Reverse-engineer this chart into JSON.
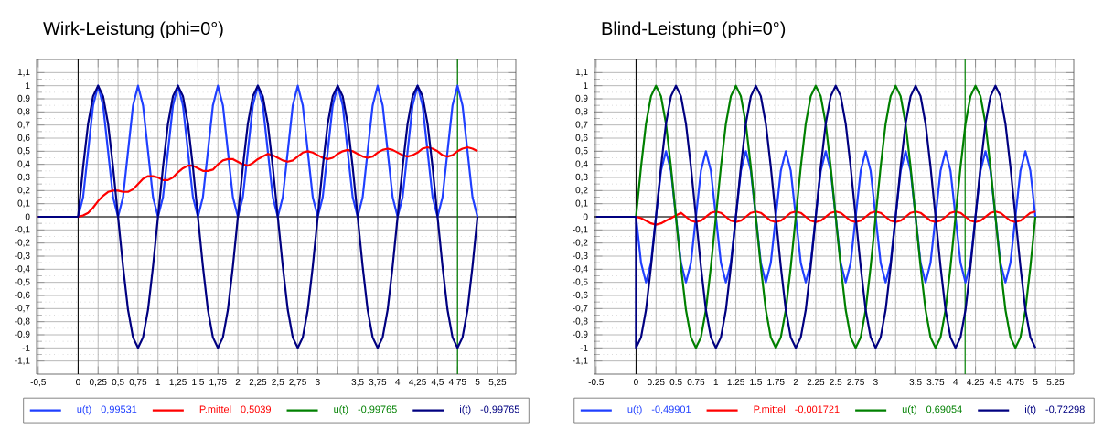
{
  "chart_data": [
    {
      "type": "line",
      "title": "Wirk-Leistung (phi=0°)",
      "grid": true,
      "legend": "bottom",
      "xlim": [
        -0.52,
        5.48
      ],
      "ylim": [
        -1.2,
        1.2
      ],
      "xticks": [
        {
          "value": -0.5,
          "label": "-0,5"
        },
        0,
        {
          "value": 0.25,
          "label": "0,25"
        },
        {
          "value": 0.5,
          "label": "0,5"
        },
        {
          "value": 0.75,
          "label": "0,75"
        },
        1,
        {
          "value": 1.25,
          "label": "1,25"
        },
        {
          "value": 1.5,
          "label": "1,5"
        },
        {
          "value": 1.75,
          "label": "1,75"
        },
        2,
        {
          "value": 2.25,
          "label": "2,25"
        },
        {
          "value": 2.5,
          "label": "2,5"
        },
        {
          "value": 2.75,
          "label": "2,75"
        },
        3,
        {
          "value": 3.25,
          "label": null
        },
        {
          "value": 3.5,
          "label": "3,5"
        },
        {
          "value": 3.75,
          "label": "3,75"
        },
        4,
        {
          "value": 4.25,
          "label": "4,25"
        },
        {
          "value": 4.5,
          "label": "4,5"
        },
        {
          "value": 4.75,
          "label": "4,75"
        },
        5,
        {
          "value": 5.25,
          "label": "5,25"
        }
      ],
      "yticks": [
        {
          "value": -1.1,
          "label": "-1,1"
        },
        -1,
        {
          "value": -0.9,
          "label": "-0,9"
        },
        {
          "value": -0.8,
          "label": "-0,8"
        },
        {
          "value": -0.7,
          "label": "-0,7"
        },
        {
          "value": -0.6,
          "label": "-0,6"
        },
        {
          "value": -0.5,
          "label": "-0,5"
        },
        {
          "value": -0.4,
          "label": "-0,4"
        },
        {
          "value": -0.3,
          "label": "-0,3"
        },
        {
          "value": -0.2,
          "label": "-0,2"
        },
        {
          "value": -0.1,
          "label": "-0,1"
        },
        0,
        {
          "value": 0.1,
          "label": "0,1"
        },
        {
          "value": 0.2,
          "label": "0,2"
        },
        {
          "value": 0.3,
          "label": "0,3"
        },
        {
          "value": 0.4,
          "label": "0,4"
        },
        {
          "value": 0.5,
          "label": "0,5"
        },
        {
          "value": 0.6,
          "label": "0,6"
        },
        {
          "value": 0.7,
          "label": "0,7"
        },
        {
          "value": 0.8,
          "label": "0,8"
        },
        {
          "value": 0.9,
          "label": "0,9"
        },
        1,
        {
          "value": 1.1,
          "label": "1,1"
        }
      ],
      "ref_lines": [
        {
          "axis": "x",
          "value": 4.75,
          "color": "#008000"
        }
      ],
      "annotations": [
        "0,99531",
        "0,5039",
        "-0,99765",
        "-0,99765"
      ],
      "x": [
        -0.5,
        0,
        0,
        0.0625,
        0.125,
        0.1875,
        0.25,
        0.3125,
        0.375,
        0.4375,
        0.5,
        0.5625,
        0.625,
        0.6875,
        0.75,
        0.8125,
        0.875,
        0.9375,
        1,
        1.0625,
        1.125,
        1.1875,
        1.25,
        1.3125,
        1.375,
        1.4375,
        1.5,
        1.5625,
        1.625,
        1.6875,
        1.75,
        1.8125,
        1.875,
        1.9375,
        2,
        2.0625,
        2.125,
        2.1875,
        2.25,
        2.3125,
        2.375,
        2.4375,
        2.5,
        2.5625,
        2.625,
        2.6875,
        2.75,
        2.8125,
        2.875,
        2.9375,
        3,
        3.0625,
        3.125,
        3.1875,
        3.25,
        3.3125,
        3.375,
        3.4375,
        3.5,
        3.5625,
        3.625,
        3.6875,
        3.75,
        3.8125,
        3.875,
        3.9375,
        4,
        4.0625,
        4.125,
        4.1875,
        4.25,
        4.3125,
        4.375,
        4.4375,
        4.5,
        4.5625,
        4.625,
        4.6875,
        4.75,
        4.8125,
        4.875,
        4.9375,
        5
      ],
      "series": [
        {
          "name": "u(t)",
          "color": "#1f3fff",
          "values": [
            0,
            0,
            0,
            0.15,
            0.5,
            0.85,
            1,
            0.85,
            0.5,
            0.15,
            0,
            0.15,
            0.5,
            0.85,
            1,
            0.85,
            0.5,
            0.15,
            0,
            0.15,
            0.5,
            0.85,
            1,
            0.85,
            0.5,
            0.15,
            0,
            0.15,
            0.5,
            0.85,
            1,
            0.85,
            0.5,
            0.15,
            0,
            0.15,
            0.5,
            0.85,
            1,
            0.85,
            0.5,
            0.15,
            0,
            0.15,
            0.5,
            0.85,
            1,
            0.85,
            0.5,
            0.15,
            0,
            0.15,
            0.5,
            0.85,
            1,
            0.85,
            0.5,
            0.15,
            0,
            0.15,
            0.5,
            0.85,
            1,
            0.85,
            0.5,
            0.15,
            0,
            0.15,
            0.5,
            0.85,
            1,
            0.85,
            0.5,
            0.15,
            0,
            0.15,
            0.5,
            0.85,
            1,
            0.85,
            0.5,
            0.15,
            0
          ]
        },
        {
          "name": "P.mittel",
          "color": "#ff0000",
          "values": [
            0,
            0,
            0,
            0.01,
            0.03,
            0.07,
            0.12,
            0.16,
            0.19,
            0.2,
            0.2,
            0.19,
            0.19,
            0.21,
            0.25,
            0.29,
            0.31,
            0.31,
            0.3,
            0.28,
            0.28,
            0.3,
            0.34,
            0.37,
            0.39,
            0.39,
            0.37,
            0.35,
            0.35,
            0.36,
            0.4,
            0.43,
            0.44,
            0.44,
            0.42,
            0.4,
            0.39,
            0.41,
            0.44,
            0.46,
            0.48,
            0.47,
            0.45,
            0.43,
            0.42,
            0.43,
            0.46,
            0.49,
            0.5,
            0.49,
            0.47,
            0.45,
            0.44,
            0.45,
            0.48,
            0.5,
            0.51,
            0.5,
            0.48,
            0.46,
            0.45,
            0.46,
            0.49,
            0.51,
            0.52,
            0.51,
            0.49,
            0.47,
            0.46,
            0.47,
            0.49,
            0.52,
            0.53,
            0.52,
            0.5,
            0.47,
            0.46,
            0.47,
            0.5,
            0.52,
            0.53,
            0.52,
            0.5
          ]
        },
        {
          "name": "u(t)",
          "color": "#008000",
          "values": [
            null,
            null,
            null,
            null,
            null,
            null,
            null,
            null,
            null,
            null,
            null,
            null,
            null,
            null,
            null,
            null,
            null,
            null,
            null,
            null,
            null,
            null,
            null,
            null,
            null,
            null,
            null,
            null,
            null,
            null,
            null,
            null,
            null,
            null,
            null,
            null,
            null,
            null,
            null,
            null,
            null,
            null,
            null,
            null,
            null,
            null,
            null,
            null,
            null,
            null,
            null,
            null,
            null,
            null,
            null,
            null,
            null,
            null,
            null,
            null,
            null,
            null,
            null,
            null,
            null,
            null,
            null,
            null,
            null,
            null,
            null,
            null,
            null,
            null,
            null,
            null,
            null,
            null,
            null,
            null,
            null,
            null,
            null
          ]
        },
        {
          "name": "i(t)",
          "color": "#000080",
          "values": [
            0,
            0,
            0,
            0.38,
            0.71,
            0.92,
            1,
            0.92,
            0.71,
            0.38,
            0,
            -0.38,
            -0.71,
            -0.92,
            -1,
            -0.92,
            -0.71,
            -0.38,
            0,
            0.38,
            0.71,
            0.92,
            1,
            0.92,
            0.71,
            0.38,
            0,
            -0.38,
            -0.71,
            -0.92,
            -1,
            -0.92,
            -0.71,
            -0.38,
            0,
            0.38,
            0.71,
            0.92,
            1,
            0.92,
            0.71,
            0.38,
            0,
            -0.38,
            -0.71,
            -0.92,
            -1,
            -0.92,
            -0.71,
            -0.38,
            0,
            0.38,
            0.71,
            0.92,
            1,
            0.92,
            0.71,
            0.38,
            0,
            -0.38,
            -0.71,
            -0.92,
            -1,
            -0.92,
            -0.71,
            -0.38,
            0,
            0.38,
            0.71,
            0.92,
            1,
            0.92,
            0.71,
            0.38,
            0,
            -0.38,
            -0.71,
            -0.92,
            -1,
            -0.92,
            -0.71,
            -0.38,
            0
          ]
        }
      ]
    },
    {
      "type": "line",
      "title": "Blind-Leistung (phi=0°)",
      "grid": true,
      "legend": "bottom",
      "xlim": [
        -0.52,
        5.48
      ],
      "ylim": [
        -1.2,
        1.2
      ],
      "xticks": [
        -0.5,
        0,
        0.25,
        0.5,
        0.75,
        1,
        1.25,
        1.5,
        1.75,
        2,
        2.25,
        2.5,
        2.75,
        3,
        {
          "value": 3.25,
          "label": null
        },
        3.5,
        3.75,
        4,
        4.25,
        4.5,
        4.75,
        5,
        5.25
      ],
      "yticks": [
        {
          "value": -1.1,
          "label": "-1,1"
        },
        -1,
        {
          "value": -0.9,
          "label": "-0,9"
        },
        {
          "value": -0.8,
          "label": "-0,8"
        },
        {
          "value": -0.7,
          "label": "-0,7"
        },
        {
          "value": -0.6,
          "label": "-0,6"
        },
        {
          "value": -0.5,
          "label": "-0,5"
        },
        {
          "value": -0.4,
          "label": "-0,4"
        },
        {
          "value": -0.3,
          "label": "-0,3"
        },
        {
          "value": -0.2,
          "label": "-0,2"
        },
        {
          "value": -0.1,
          "label": "-0,1"
        },
        0,
        {
          "value": 0.1,
          "label": "0,1"
        },
        {
          "value": 0.2,
          "label": "0,2"
        },
        {
          "value": 0.3,
          "label": "0,3"
        },
        {
          "value": 0.4,
          "label": "0,4"
        },
        {
          "value": 0.5,
          "label": "0,5"
        },
        {
          "value": 0.6,
          "label": "0,6"
        },
        {
          "value": 0.7,
          "label": "0,7"
        },
        {
          "value": 0.8,
          "label": "0,8"
        },
        {
          "value": 0.9,
          "label": "0,9"
        },
        1,
        {
          "value": 1.1,
          "label": "1,1"
        }
      ],
      "ref_lines": [
        {
          "axis": "x",
          "value": 4.12,
          "color": "#008000"
        }
      ],
      "annotations": [
        "-0,49901",
        "-0,001721",
        "0,69054",
        "-0,72298"
      ],
      "x": [
        -0.5,
        0,
        0,
        0.0625,
        0.125,
        0.1875,
        0.25,
        0.3125,
        0.375,
        0.4375,
        0.5,
        0.5625,
        0.625,
        0.6875,
        0.75,
        0.8125,
        0.875,
        0.9375,
        1,
        1.0625,
        1.125,
        1.1875,
        1.25,
        1.3125,
        1.375,
        1.4375,
        1.5,
        1.5625,
        1.625,
        1.6875,
        1.75,
        1.8125,
        1.875,
        1.9375,
        2,
        2.0625,
        2.125,
        2.1875,
        2.25,
        2.3125,
        2.375,
        2.4375,
        2.5,
        2.5625,
        2.625,
        2.6875,
        2.75,
        2.8125,
        2.875,
        2.9375,
        3,
        3.0625,
        3.125,
        3.1875,
        3.25,
        3.3125,
        3.375,
        3.4375,
        3.5,
        3.5625,
        3.625,
        3.6875,
        3.75,
        3.8125,
        3.875,
        3.9375,
        4,
        4.0625,
        4.125,
        4.1875,
        4.25,
        4.3125,
        4.375,
        4.4375,
        4.5,
        4.5625,
        4.625,
        4.6875,
        4.75,
        4.8125,
        4.875,
        4.9375,
        5
      ],
      "series": [
        {
          "name": "u(t)",
          "color": "#1f3fff",
          "values": [
            0,
            0,
            0,
            -0.35,
            -0.5,
            -0.35,
            0,
            0.35,
            0.5,
            0.35,
            0,
            -0.35,
            -0.5,
            -0.35,
            0,
            0.35,
            0.5,
            0.35,
            0,
            -0.35,
            -0.5,
            -0.35,
            0,
            0.35,
            0.5,
            0.35,
            0,
            -0.35,
            -0.5,
            -0.35,
            0,
            0.35,
            0.5,
            0.35,
            0,
            -0.35,
            -0.5,
            -0.35,
            0,
            0.35,
            0.5,
            0.35,
            0,
            -0.35,
            -0.5,
            -0.35,
            0,
            0.35,
            0.5,
            0.35,
            0,
            -0.35,
            -0.5,
            -0.35,
            0,
            0.35,
            0.5,
            0.35,
            0,
            -0.35,
            -0.5,
            -0.35,
            0,
            0.35,
            0.5,
            0.35,
            0,
            -0.35,
            -0.5,
            -0.35,
            0,
            0.35,
            0.5,
            0.35,
            0,
            -0.35,
            -0.5,
            -0.35,
            0,
            0.35,
            0.5,
            0.35,
            0
          ]
        },
        {
          "name": "P.mittel",
          "color": "#ff0000",
          "values": [
            0,
            0,
            0,
            -0.01,
            -0.03,
            -0.05,
            -0.06,
            -0.05,
            -0.03,
            -0.01,
            0.01,
            0.03,
            0,
            -0.03,
            -0.04,
            -0.03,
            0,
            0.03,
            0.04,
            0.03,
            0,
            -0.03,
            -0.04,
            -0.03,
            0,
            0.03,
            0.04,
            0.03,
            0,
            -0.03,
            -0.04,
            -0.03,
            0,
            0.03,
            0.04,
            0.03,
            0,
            -0.03,
            -0.04,
            -0.03,
            0,
            0.03,
            0.04,
            0.03,
            0,
            -0.03,
            -0.04,
            -0.03,
            0,
            0.03,
            0.04,
            0.03,
            0,
            -0.03,
            -0.04,
            -0.03,
            0,
            0.03,
            0.04,
            0.03,
            0,
            -0.03,
            -0.04,
            -0.03,
            0,
            0.03,
            0.04,
            0.03,
            0,
            -0.03,
            -0.04,
            -0.03,
            0,
            0.03,
            0.04,
            0.03,
            0,
            -0.03,
            -0.04,
            -0.03,
            0,
            0.03,
            0.04
          ]
        },
        {
          "name": "u(t)",
          "color": "#008000",
          "values": [
            0,
            0,
            0,
            0.38,
            0.71,
            0.92,
            1,
            0.92,
            0.71,
            0.38,
            0,
            -0.38,
            -0.71,
            -0.92,
            -1,
            -0.92,
            -0.71,
            -0.38,
            0,
            0.38,
            0.71,
            0.92,
            1,
            0.92,
            0.71,
            0.38,
            0,
            -0.38,
            -0.71,
            -0.92,
            -1,
            -0.92,
            -0.71,
            -0.38,
            0,
            0.38,
            0.71,
            0.92,
            1,
            0.92,
            0.71,
            0.38,
            0,
            -0.38,
            -0.71,
            -0.92,
            -1,
            -0.92,
            -0.71,
            -0.38,
            0,
            0.38,
            0.71,
            0.92,
            1,
            0.92,
            0.71,
            0.38,
            0,
            -0.38,
            -0.71,
            -0.92,
            -1,
            -0.92,
            -0.71,
            -0.38,
            0,
            0.38,
            0.71,
            0.92,
            1,
            0.92,
            0.71,
            0.38,
            0,
            -0.38,
            -0.71,
            -0.92,
            -1,
            -0.92,
            -0.71,
            -0.38,
            0
          ]
        },
        {
          "name": "i(t)",
          "color": "#000080",
          "values": [
            0,
            0,
            -1,
            -0.92,
            -0.71,
            -0.38,
            0,
            0.38,
            0.71,
            0.92,
            1,
            0.92,
            0.71,
            0.38,
            0,
            -0.38,
            -0.71,
            -0.92,
            -1,
            -0.92,
            -0.71,
            -0.38,
            0,
            0.38,
            0.71,
            0.92,
            1,
            0.92,
            0.71,
            0.38,
            0,
            -0.38,
            -0.71,
            -0.92,
            -1,
            -0.92,
            -0.71,
            -0.38,
            0,
            0.38,
            0.71,
            0.92,
            1,
            0.92,
            0.71,
            0.38,
            0,
            -0.38,
            -0.71,
            -0.92,
            -1,
            -0.92,
            -0.71,
            -0.38,
            0,
            0.38,
            0.71,
            0.92,
            1,
            0.92,
            0.71,
            0.38,
            0,
            -0.38,
            -0.71,
            -0.92,
            -1,
            -0.92,
            -0.71,
            -0.38,
            0,
            0.38,
            0.71,
            0.92,
            1,
            0.92,
            0.71,
            0.38,
            0,
            -0.38,
            -0.71,
            -0.92,
            -1
          ]
        }
      ]
    }
  ]
}
